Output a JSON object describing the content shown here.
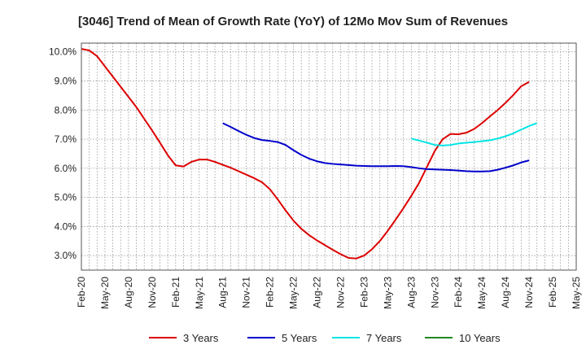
{
  "chart_data": {
    "type": "line",
    "title": "[3046]  Trend of Mean of Growth Rate (YoY) of 12Mo Mov Sum of Revenues",
    "xlabel": "",
    "ylabel": "",
    "ylim": [
      2.5,
      10.3
    ],
    "yticks": [
      3.0,
      4.0,
      5.0,
      6.0,
      7.0,
      8.0,
      9.0,
      10.0
    ],
    "ytick_labels": [
      "3.0%",
      "4.0%",
      "5.0%",
      "6.0%",
      "7.0%",
      "8.0%",
      "9.0%",
      "10.0%"
    ],
    "x_start": "Feb-20",
    "x_months_total": 63,
    "xtick_labels": [
      "Feb-20",
      "May-20",
      "Aug-20",
      "Nov-20",
      "Feb-21",
      "May-21",
      "Aug-21",
      "Nov-21",
      "Feb-22",
      "May-22",
      "Aug-22",
      "Nov-22",
      "Feb-23",
      "May-23",
      "Aug-23",
      "Nov-23",
      "Feb-24",
      "May-24",
      "Aug-24",
      "Nov-24",
      "Feb-25",
      "May-25"
    ],
    "grid": true,
    "legend_position": "bottom",
    "series": [
      {
        "name": "3 Years",
        "color": "#dd0000",
        "points": [
          [
            0,
            10.1
          ],
          [
            1,
            10.05
          ],
          [
            2,
            9.85
          ],
          [
            3,
            9.5
          ],
          [
            4,
            9.15
          ],
          [
            5,
            8.8
          ],
          [
            6,
            8.45
          ],
          [
            7,
            8.1
          ],
          [
            8,
            7.7
          ],
          [
            9,
            7.3
          ],
          [
            10,
            6.88
          ],
          [
            11,
            6.45
          ],
          [
            12,
            6.1
          ],
          [
            13,
            6.06
          ],
          [
            14,
            6.22
          ],
          [
            15,
            6.3
          ],
          [
            16,
            6.3
          ],
          [
            17,
            6.22
          ],
          [
            18,
            6.12
          ],
          [
            19,
            6.02
          ],
          [
            20,
            5.9
          ],
          [
            21,
            5.78
          ],
          [
            22,
            5.66
          ],
          [
            23,
            5.52
          ],
          [
            24,
            5.28
          ],
          [
            25,
            4.93
          ],
          [
            26,
            4.55
          ],
          [
            27,
            4.2
          ],
          [
            28,
            3.92
          ],
          [
            29,
            3.7
          ],
          [
            30,
            3.52
          ],
          [
            31,
            3.36
          ],
          [
            32,
            3.2
          ],
          [
            33,
            3.05
          ],
          [
            34,
            2.92
          ],
          [
            35,
            2.9
          ],
          [
            36,
            3.0
          ],
          [
            37,
            3.22
          ],
          [
            38,
            3.5
          ],
          [
            39,
            3.85
          ],
          [
            40,
            4.23
          ],
          [
            41,
            4.63
          ],
          [
            42,
            5.05
          ],
          [
            43,
            5.5
          ],
          [
            44,
            6.05
          ],
          [
            45,
            6.6
          ],
          [
            46,
            7.0
          ],
          [
            47,
            7.18
          ],
          [
            48,
            7.17
          ],
          [
            49,
            7.22
          ],
          [
            50,
            7.35
          ],
          [
            51,
            7.55
          ],
          [
            52,
            7.78
          ],
          [
            53,
            8.0
          ],
          [
            54,
            8.25
          ],
          [
            55,
            8.52
          ],
          [
            56,
            8.82
          ],
          [
            57,
            8.97
          ]
        ]
      },
      {
        "name": "5 Years",
        "color": "#0000cc",
        "points": [
          [
            18,
            7.55
          ],
          [
            19,
            7.42
          ],
          [
            20,
            7.28
          ],
          [
            21,
            7.15
          ],
          [
            22,
            7.04
          ],
          [
            23,
            6.97
          ],
          [
            24,
            6.94
          ],
          [
            25,
            6.9
          ],
          [
            26,
            6.8
          ],
          [
            27,
            6.62
          ],
          [
            28,
            6.46
          ],
          [
            29,
            6.33
          ],
          [
            30,
            6.24
          ],
          [
            31,
            6.18
          ],
          [
            32,
            6.15
          ],
          [
            33,
            6.13
          ],
          [
            34,
            6.11
          ],
          [
            35,
            6.09
          ],
          [
            36,
            6.08
          ],
          [
            37,
            6.07
          ],
          [
            38,
            6.07
          ],
          [
            39,
            6.07
          ],
          [
            40,
            6.08
          ],
          [
            41,
            6.07
          ],
          [
            42,
            6.04
          ],
          [
            43,
            6.0
          ],
          [
            44,
            5.97
          ],
          [
            45,
            5.96
          ],
          [
            46,
            5.95
          ],
          [
            47,
            5.94
          ],
          [
            48,
            5.92
          ],
          [
            49,
            5.9
          ],
          [
            50,
            5.89
          ],
          [
            51,
            5.89
          ],
          [
            52,
            5.9
          ],
          [
            53,
            5.95
          ],
          [
            54,
            6.02
          ],
          [
            55,
            6.1
          ],
          [
            56,
            6.2
          ],
          [
            57,
            6.27
          ]
        ]
      },
      {
        "name": "7 Years",
        "color": "#00e5e5",
        "points": [
          [
            42,
            7.02
          ],
          [
            43,
            6.95
          ],
          [
            44,
            6.88
          ],
          [
            45,
            6.8
          ],
          [
            46,
            6.78
          ],
          [
            47,
            6.8
          ],
          [
            48,
            6.85
          ],
          [
            49,
            6.88
          ],
          [
            50,
            6.9
          ],
          [
            51,
            6.93
          ],
          [
            52,
            6.96
          ],
          [
            53,
            7.02
          ],
          [
            54,
            7.1
          ],
          [
            55,
            7.2
          ],
          [
            56,
            7.33
          ],
          [
            57,
            7.45
          ],
          [
            58,
            7.55
          ]
        ]
      },
      {
        "name": "10 Years",
        "color": "#228822",
        "points": []
      }
    ]
  }
}
